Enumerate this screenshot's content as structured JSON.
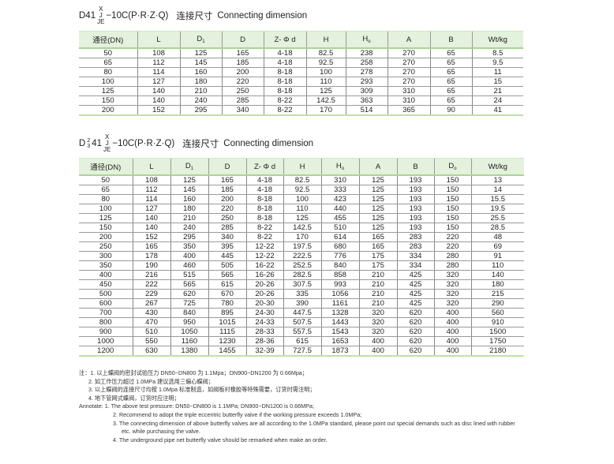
{
  "table1": {
    "title": {
      "prefix": "D41",
      "sup": "X",
      "mid": "J",
      "sub": "JE",
      "suffix": "−10C(P·R·Z·Q)",
      "cn": "连接尺寸",
      "en": "Connecting dimension"
    },
    "headers": [
      "通径(DN)",
      "L",
      "D1",
      "D",
      "Z- Φ d",
      "H",
      "Ho",
      "A",
      "B",
      "Wt/kg"
    ],
    "rows": [
      [
        "50",
        "108",
        "125",
        "165",
        "4-18",
        "82.5",
        "238",
        "270",
        "65",
        "8.5"
      ],
      [
        "65",
        "112",
        "145",
        "185",
        "4-18",
        "92.5",
        "258",
        "270",
        "65",
        "9.5"
      ],
      [
        "80",
        "114",
        "160",
        "200",
        "8-18",
        "100",
        "278",
        "270",
        "65",
        "11"
      ],
      [
        "100",
        "127",
        "180",
        "220",
        "8-18",
        "110",
        "293",
        "270",
        "65",
        "15"
      ],
      [
        "125",
        "140",
        "210",
        "250",
        "8-18",
        "125",
        "309",
        "310",
        "65",
        "21"
      ],
      [
        "150",
        "140",
        "240",
        "285",
        "8-22",
        "142.5",
        "363",
        "310",
        "65",
        "24"
      ],
      [
        "200",
        "152",
        "295",
        "340",
        "8-22",
        "170",
        "514",
        "365",
        "90",
        "41"
      ]
    ]
  },
  "table2": {
    "title": {
      "prefix": "D",
      "frac_top": "2",
      "frac_bottom": "3",
      "num": "41",
      "sup": "X",
      "mid": "J",
      "sub": "JE",
      "suffix": "−10C(P·R·Z·Q)",
      "cn": "连接尺寸",
      "en": "Connecting dimension"
    },
    "headers": [
      "通径(DN)",
      "L",
      "D1",
      "D",
      "Z- Φ d",
      "H",
      "Ho",
      "A",
      "B",
      "Do",
      "Wt/kg"
    ],
    "rows": [
      [
        "50",
        "108",
        "125",
        "165",
        "4-18",
        "82.5",
        "310",
        "125",
        "193",
        "150",
        "13"
      ],
      [
        "65",
        "112",
        "145",
        "185",
        "4-18",
        "92.5",
        "333",
        "125",
        "193",
        "150",
        "14"
      ],
      [
        "80",
        "114",
        "160",
        "200",
        "8-18",
        "100",
        "423",
        "125",
        "193",
        "150",
        "15.5"
      ],
      [
        "100",
        "127",
        "180",
        "220",
        "8-18",
        "110",
        "440",
        "125",
        "193",
        "150",
        "19.5"
      ],
      [
        "125",
        "140",
        "210",
        "250",
        "8-18",
        "125",
        "455",
        "125",
        "193",
        "150",
        "25.5"
      ],
      [
        "150",
        "140",
        "240",
        "285",
        "8-22",
        "142.5",
        "510",
        "125",
        "193",
        "150",
        "28.5"
      ],
      [
        "200",
        "152",
        "295",
        "340",
        "8-22",
        "170",
        "614",
        "165",
        "283",
        "220",
        "48"
      ],
      [
        "250",
        "165",
        "350",
        "395",
        "12-22",
        "197.5",
        "680",
        "165",
        "283",
        "220",
        "69"
      ],
      [
        "300",
        "178",
        "400",
        "445",
        "12-22",
        "222.5",
        "776",
        "175",
        "334",
        "280",
        "91"
      ],
      [
        "350",
        "190",
        "460",
        "505",
        "16-22",
        "252.5",
        "840",
        "175",
        "334",
        "280",
        "110"
      ],
      [
        "400",
        "216",
        "515",
        "565",
        "16-26",
        "282.5",
        "858",
        "210",
        "425",
        "320",
        "140"
      ],
      [
        "450",
        "222",
        "565",
        "615",
        "20-26",
        "307.5",
        "993",
        "210",
        "425",
        "320",
        "180"
      ],
      [
        "500",
        "229",
        "620",
        "670",
        "20-26",
        "335",
        "1056",
        "210",
        "425",
        "320",
        "215"
      ],
      [
        "600",
        "267",
        "725",
        "780",
        "20-30",
        "390",
        "1161",
        "210",
        "425",
        "320",
        "290"
      ],
      [
        "700",
        "430",
        "840",
        "895",
        "24-30",
        "447.5",
        "1328",
        "320",
        "620",
        "400",
        "560"
      ],
      [
        "800",
        "470",
        "950",
        "1015",
        "24-33",
        "507.5",
        "1443",
        "320",
        "620",
        "400",
        "910"
      ],
      [
        "900",
        "510",
        "1050",
        "1115",
        "28-33",
        "557.5",
        "1543",
        "320",
        "620",
        "400",
        "1500"
      ],
      [
        "1000",
        "550",
        "1160",
        "1230",
        "28-36",
        "615",
        "1653",
        "400",
        "620",
        "400",
        "1750"
      ],
      [
        "1200",
        "630",
        "1380",
        "1455",
        "32-39",
        "727.5",
        "1873",
        "400",
        "620",
        "400",
        "2180"
      ]
    ]
  },
  "notes": {
    "cn": [
      "注：1. 以上蝶阀的密封试验压力 DN50−DN800 为 1.1Mpa；DN900−DN1200 为 0.66Mpa；",
      "2. 如工作压力超过 1.0MPa 建议选用三偏心蝶阀；",
      "3. 以上蝶阀的连接尺寸均按 1.0Mpa 标准制造，如阀板衬橡胶等特殊需要，订货时需注明；",
      "4. 地下管网式蝶阀，订货时应注明；"
    ],
    "en": [
      "Annotate: 1. The above test pressure: DN50−DN800 is 1.1MPa; DN900−DN1200 is 0.66MPa;",
      "2. Recommend to adopt the triple eccentric butterfly valve if the working pressure exceeds 1.0MPa;",
      "3. The connecting dimension of above butterfly valves are all according to the 1.0MPa standard, please point out special demands such as disc lined with rubber",
      "etc. while purchasing the valve.",
      "4. The underground pipe net butterfly valve should be remarked when make an order."
    ]
  }
}
